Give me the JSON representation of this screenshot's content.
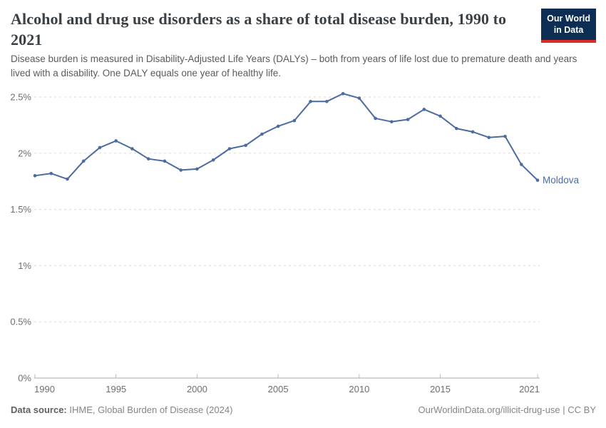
{
  "header": {
    "title": "Alcohol and drug use disorders as a share of total disease burden, 1990 to 2021",
    "subtitle": "Disease burden is measured in Disability-Adjusted Life Years (DALYs) – both from years of life lost due to premature death and years lived with a disability. One DALY equals one year of healthy life.",
    "logo": {
      "line1": "Our World",
      "line2": "in Data",
      "bg_color": "#0d2e52",
      "accent_color": "#dc2a27"
    }
  },
  "chart_data": {
    "type": "line",
    "title": "Alcohol and drug use disorders as a share of total disease burden, 1990 to 2021",
    "x": [
      1990,
      1991,
      1992,
      1993,
      1994,
      1995,
      1996,
      1997,
      1998,
      1999,
      2000,
      2001,
      2002,
      2003,
      2004,
      2005,
      2006,
      2007,
      2008,
      2009,
      2010,
      2011,
      2012,
      2013,
      2014,
      2015,
      2016,
      2017,
      2018,
      2019,
      2020,
      2021
    ],
    "series": [
      {
        "name": "Moldova",
        "color": "#4c6ba0",
        "unit": "%",
        "values": [
          1.8,
          1.82,
          1.77,
          1.93,
          2.05,
          2.11,
          2.04,
          1.95,
          1.93,
          1.85,
          1.86,
          1.94,
          2.04,
          2.07,
          2.17,
          2.24,
          2.29,
          2.46,
          2.46,
          2.53,
          2.49,
          2.31,
          2.28,
          2.3,
          2.39,
          2.33,
          2.22,
          2.19,
          2.14,
          2.15,
          1.9,
          1.76
        ]
      }
    ],
    "x_ticks": [
      {
        "value": 1990,
        "label": "1990"
      },
      {
        "value": 1995,
        "label": "1995"
      },
      {
        "value": 2000,
        "label": "2000"
      },
      {
        "value": 2005,
        "label": "2005"
      },
      {
        "value": 2010,
        "label": "2010"
      },
      {
        "value": 2015,
        "label": "2015"
      },
      {
        "value": 2021,
        "label": "2021"
      }
    ],
    "y_ticks": [
      {
        "value": 0,
        "label": "0%"
      },
      {
        "value": 0.5,
        "label": "0.5%"
      },
      {
        "value": 1,
        "label": "1%"
      },
      {
        "value": 1.5,
        "label": "1.5%"
      },
      {
        "value": 2,
        "label": "2%"
      },
      {
        "value": 2.5,
        "label": "2.5%"
      }
    ],
    "xlim": [
      1990,
      2021
    ],
    "ylim": [
      0,
      2.6
    ],
    "grid": "horizontal-dashed",
    "legend": "end-of-line-label"
  },
  "footer": {
    "source_label": "Data source:",
    "source_value": "IHME, Global Burden of Disease (2024)",
    "license": "OurWorldinData.org/illicit-drug-use | CC BY"
  }
}
